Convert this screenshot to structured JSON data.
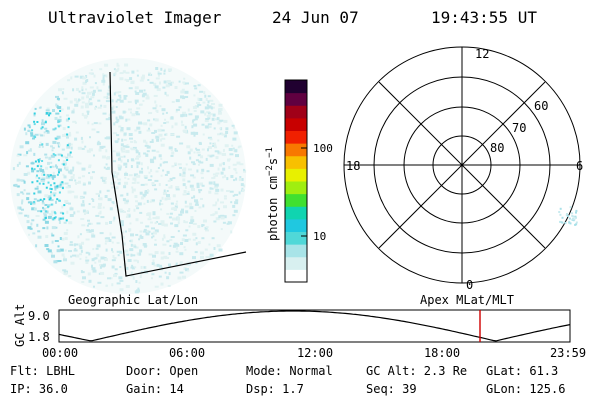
{
  "header": {
    "title": "Ultraviolet Imager",
    "date": "24 Jun 07",
    "time": "19:43:55 UT"
  },
  "colorbar": {
    "unit_label": "photon cm",
    "unit_sup1": "−2",
    "unit_mid": "s",
    "unit_sup2": "−1",
    "ticks": [
      "100",
      "10"
    ],
    "colors": [
      "#ffffff",
      "#d8f0f0",
      "#a8e4e8",
      "#50d8d8",
      "#20c8e0",
      "#10d4b0",
      "#40e030",
      "#a0ee10",
      "#e8f000",
      "#f8c000",
      "#f87800",
      "#f02000",
      "#c80000",
      "#a00018",
      "#600040",
      "#200030"
    ]
  },
  "polar": {
    "mlt_labels": [
      "12",
      "18",
      "6",
      "0"
    ],
    "lat_labels": [
      "60",
      "70",
      "80"
    ]
  },
  "timeline": {
    "axis_label": "GC Alt",
    "yticks": [
      "9.0",
      "1.8"
    ],
    "left_caption": "Geographic Lat/Lon",
    "right_caption": "Apex MLat/MLT",
    "xticks": [
      "00:00",
      "06:00",
      "12:00",
      "18:00",
      "23:59"
    ],
    "marker_color": "#d00000"
  },
  "footer": {
    "flt": "Flt: LBHL",
    "ip": "IP: 36.0",
    "door": "Door: Open",
    "gain": "Gain: 14",
    "mode": "Mode: Normal",
    "dsp": "Dsp:    1.7",
    "gcalt": "GC Alt: 2.3 Re",
    "seq": "Seq: 39",
    "glat": "GLat:  61.3",
    "glon": "GLon: 125.6"
  }
}
